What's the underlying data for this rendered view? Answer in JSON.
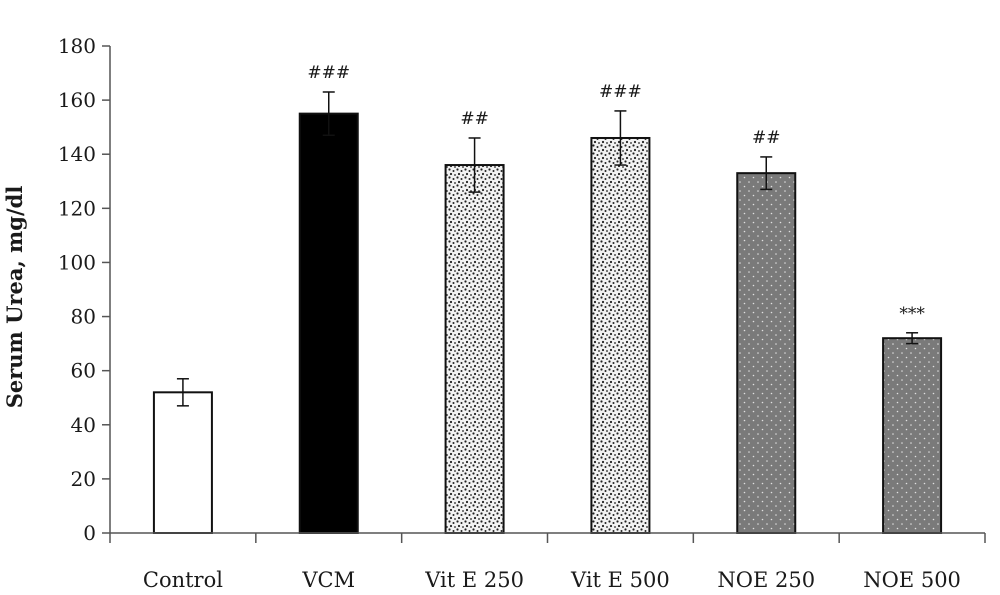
{
  "chart_data": {
    "type": "bar",
    "title": "",
    "xlabel": "",
    "ylabel": "Serum Urea, mg/dl",
    "ylim": [
      0,
      180
    ],
    "yticks": [
      0,
      20,
      40,
      60,
      80,
      100,
      120,
      140,
      160,
      180
    ],
    "grid": false,
    "legend": "none",
    "categories": [
      "Control",
      "VCM",
      "Vit E 250",
      "Vit E 500",
      "NOE 250",
      "NOE 500"
    ],
    "values": [
      52,
      155,
      136,
      146,
      133,
      72
    ],
    "errors": [
      5,
      8,
      10,
      10,
      6,
      2
    ],
    "annotations": [
      "",
      "###",
      "##",
      "###",
      "##",
      "***"
    ],
    "styles": [
      "white",
      "black",
      "speckle",
      "speckle",
      "gray-dots",
      "gray-dots"
    ]
  },
  "colors": {
    "axis": "#555555",
    "bar_border": "#111111",
    "black_fill": "#000000",
    "gray_fill": "#7a7a7a",
    "speckle_bg": "#f2f2f2"
  }
}
